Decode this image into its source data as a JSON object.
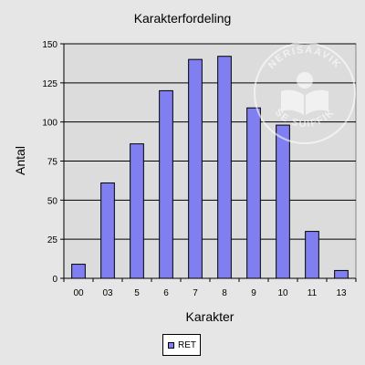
{
  "chart_data": {
    "type": "bar",
    "title": "Karakterfordeling",
    "xlabel": "Karakter",
    "ylabel": "Antal",
    "categories": [
      "00",
      "03",
      "5",
      "6",
      "7",
      "8",
      "9",
      "10",
      "11",
      "13"
    ],
    "series": [
      {
        "name": "RET",
        "values": [
          9,
          61,
          86,
          120,
          140,
          142,
          109,
          98,
          30,
          5
        ]
      }
    ],
    "ylim": [
      0,
      150
    ],
    "yticks": [
      0,
      25,
      50,
      75,
      100,
      125,
      150
    ],
    "grid": true,
    "legend": "bottom"
  },
  "colors": {
    "bar": "#7f7ff2",
    "plot_bg": "#dcdcdc",
    "page_bg": "#e6e6e6"
  },
  "watermark": {
    "top_text": "NERISAAVIK",
    "bottom_text": "SE SUIFFIK"
  }
}
